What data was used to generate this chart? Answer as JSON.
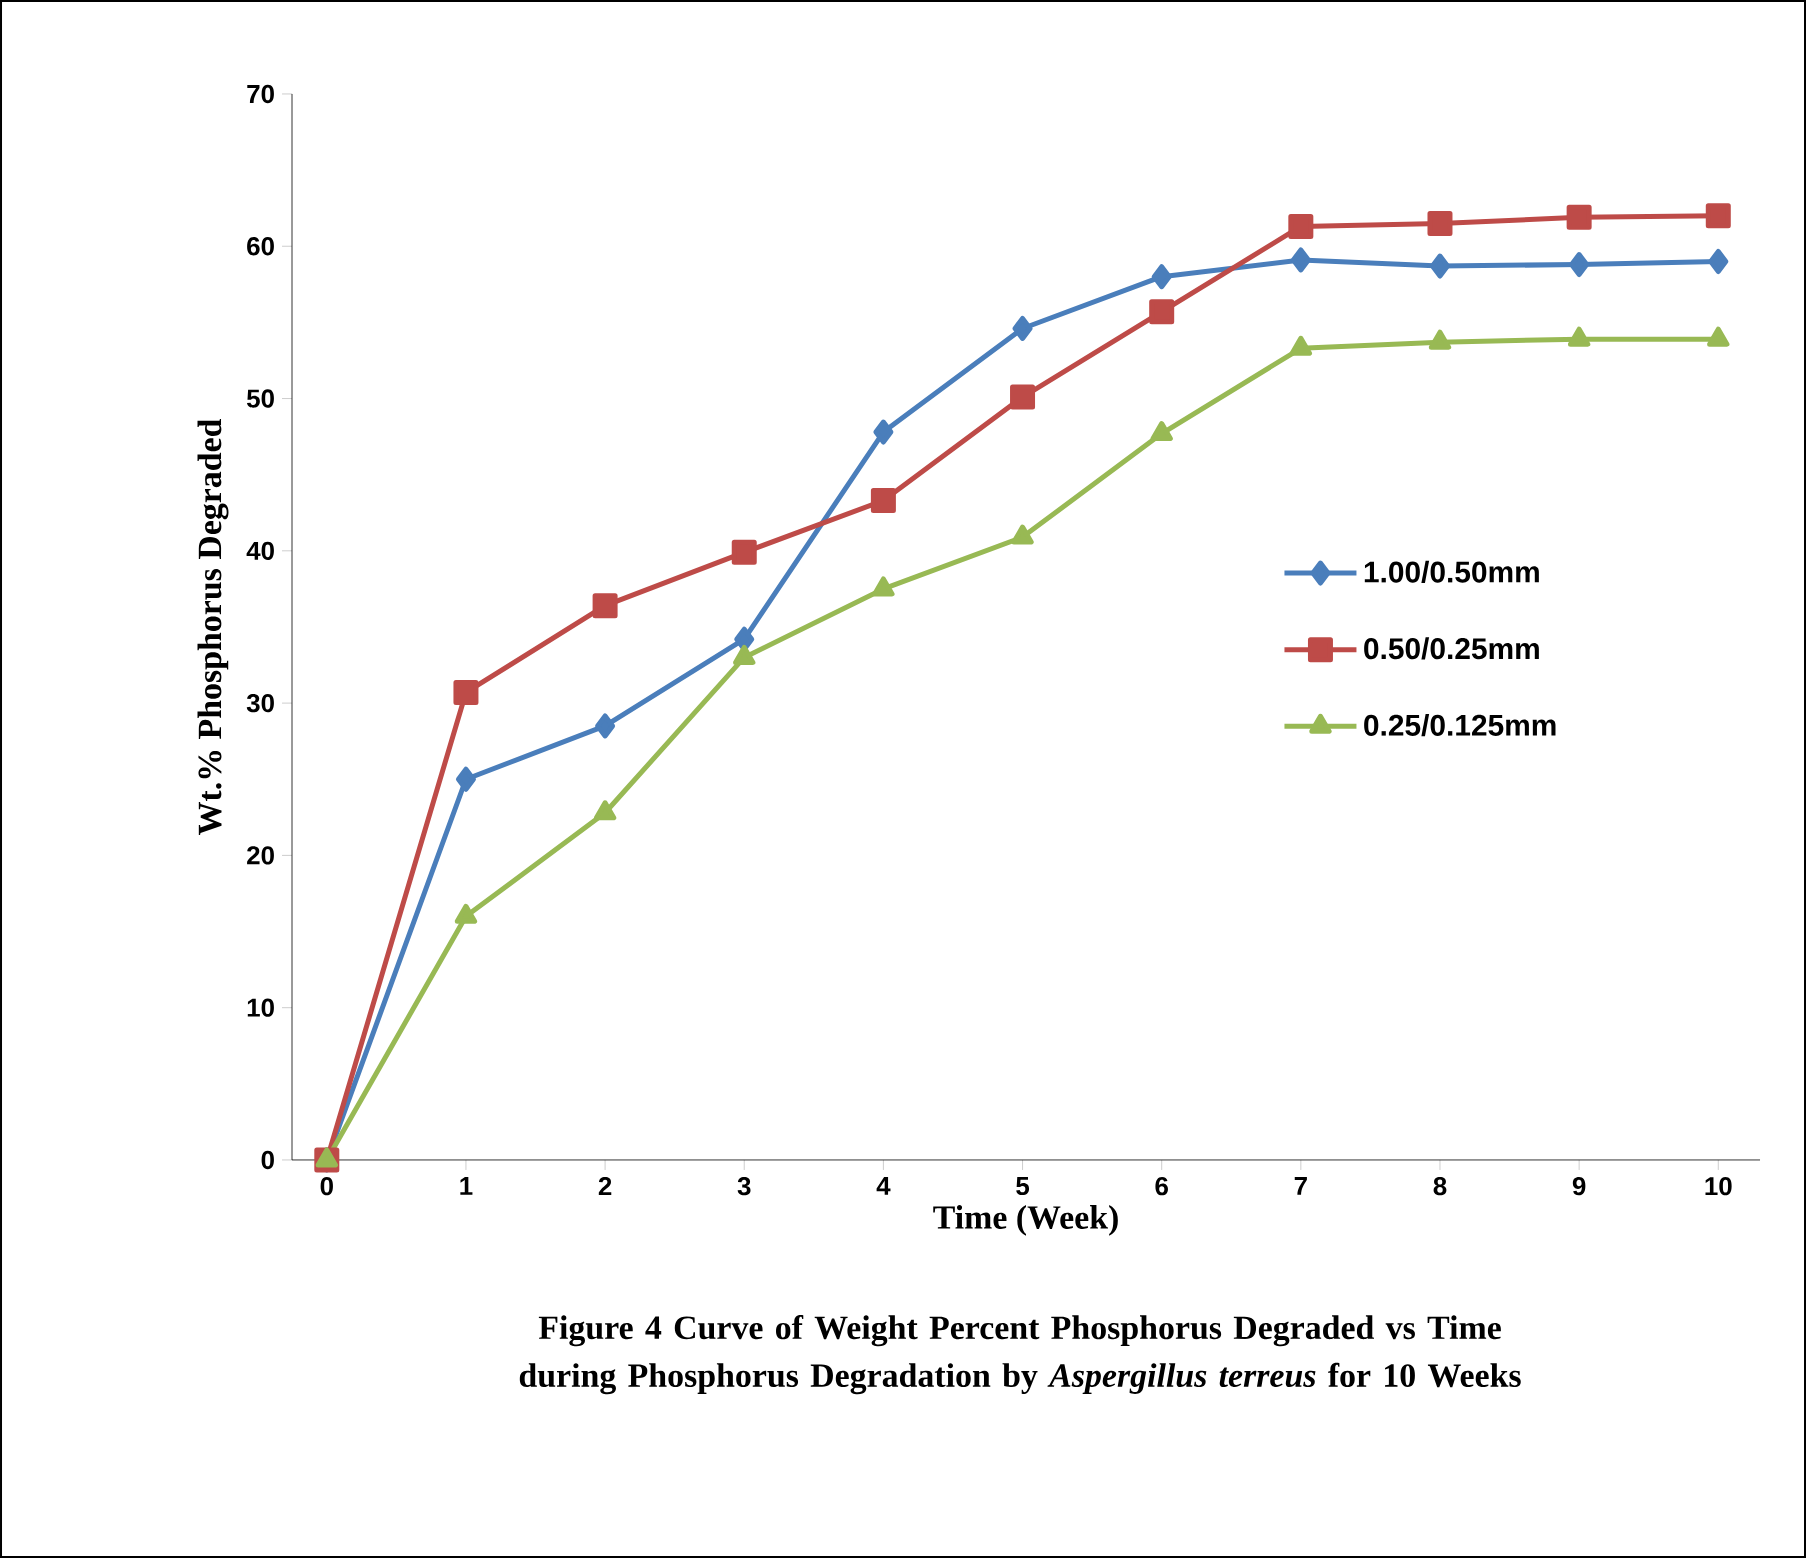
{
  "chart_data": {
    "type": "line",
    "xlabel": "Time (Week)",
    "ylabel": "Wt.% Phosphorus Degraded",
    "categories": [
      "0",
      "1",
      "2",
      "3",
      "4",
      "5",
      "6",
      "7",
      "8",
      "9",
      "10"
    ],
    "series": [
      {
        "name": "1.00/0.50mm",
        "color": "#4a7ebb",
        "marker": "diamond",
        "values": [
          0,
          25,
          28.5,
          34.2,
          47.8,
          54.6,
          58,
          59.1,
          58.7,
          58.8,
          59
        ]
      },
      {
        "name": "0.50/0.25mm",
        "color": "#be4b48",
        "marker": "square",
        "values": [
          0,
          30.7,
          36.4,
          39.9,
          43.3,
          50.1,
          55.7,
          61.3,
          61.5,
          61.9,
          62
        ]
      },
      {
        "name": "0.25/0.125mm",
        "color": "#98b954",
        "marker": "triangle",
        "values": [
          0,
          16,
          22.8,
          33,
          37.5,
          40.9,
          47.7,
          53.3,
          53.7,
          53.9,
          53.9
        ]
      }
    ],
    "ylim": [
      0,
      70
    ],
    "yticks": [
      0,
      10,
      20,
      30,
      40,
      50,
      60,
      70
    ],
    "grid": false,
    "legend": "right",
    "line_style": "solid",
    "annotations": [
      "Figure 4          Curve of Weight Percent Phosphorus Degraded vs Time during Phosphorus Degradation by *Aspergillus terreus* for 10 Weeks"
    ]
  }
}
